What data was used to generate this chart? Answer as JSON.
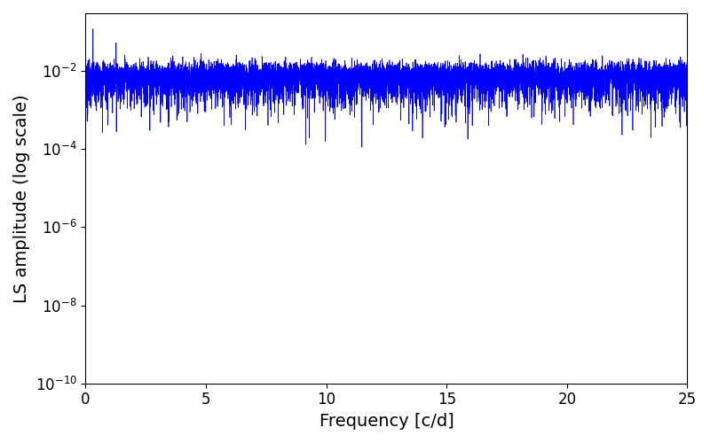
{
  "xlabel": "Frequency [c/d]",
  "ylabel": "LS amplitude (log scale)",
  "xlim": [
    0,
    25
  ],
  "ylim": [
    1e-10,
    0.3
  ],
  "line_color": "#0000ff",
  "line_width": 0.5,
  "background_color": "#ffffff",
  "tick_label_size": 12,
  "axis_label_size": 14,
  "seed": 12345,
  "n_freq": 10000,
  "freq_max": 25.0,
  "figsize": [
    8.0,
    5.0
  ],
  "dpi": 100
}
